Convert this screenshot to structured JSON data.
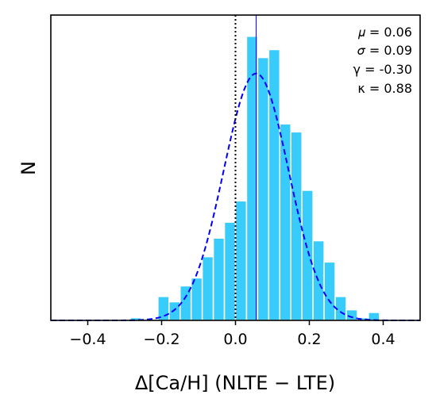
{
  "chart_data": {
    "type": "bar",
    "title": "",
    "xlabel": "Δ[Ca/H] (NLTE − LTE)",
    "ylabel": "N",
    "xlim": [
      -0.5,
      0.5
    ],
    "ylim": [
      0,
      115
    ],
    "xticks": [
      -0.4,
      -0.2,
      0.0,
      0.2,
      0.4
    ],
    "xtick_labels": [
      "−0.4",
      "−0.2",
      "0.0",
      "0.2",
      "0.4"
    ],
    "yticks_shown": false,
    "grid": false,
    "bin_width": 0.03,
    "bins": [
      {
        "x": -0.27,
        "count": 1
      },
      {
        "x": -0.195,
        "count": 9
      },
      {
        "x": -0.165,
        "count": 7
      },
      {
        "x": -0.135,
        "count": 13
      },
      {
        "x": -0.105,
        "count": 16
      },
      {
        "x": -0.075,
        "count": 24
      },
      {
        "x": -0.045,
        "count": 31
      },
      {
        "x": -0.015,
        "count": 37
      },
      {
        "x": 0.015,
        "count": 45
      },
      {
        "x": 0.045,
        "count": 107
      },
      {
        "x": 0.075,
        "count": 99
      },
      {
        "x": 0.105,
        "count": 102
      },
      {
        "x": 0.135,
        "count": 74
      },
      {
        "x": 0.165,
        "count": 71
      },
      {
        "x": 0.195,
        "count": 49
      },
      {
        "x": 0.225,
        "count": 30
      },
      {
        "x": 0.255,
        "count": 22
      },
      {
        "x": 0.285,
        "count": 9
      },
      {
        "x": 0.315,
        "count": 4
      },
      {
        "x": 0.345,
        "count": 1
      },
      {
        "x": 0.375,
        "count": 3
      }
    ],
    "fit_curve": {
      "type": "gaussian",
      "mu": 0.056,
      "sigma": 0.088,
      "peak": 93,
      "color": "#0000ff",
      "style": "dashed"
    },
    "reference_lines": [
      {
        "x": 0.0,
        "style": "dotted",
        "color": "#000000"
      },
      {
        "x": 0.056,
        "style": "solid",
        "color": "#0000ff"
      }
    ],
    "bar_color": "#38CCFC",
    "stats": [
      {
        "key": "mu",
        "text": "𝜇 = 0.06"
      },
      {
        "key": "sigma",
        "text": "𝜎 = 0.09"
      },
      {
        "key": "gamma",
        "text": "γ = -0.30"
      },
      {
        "key": "kappa",
        "text": "κ = 0.88"
      }
    ]
  }
}
